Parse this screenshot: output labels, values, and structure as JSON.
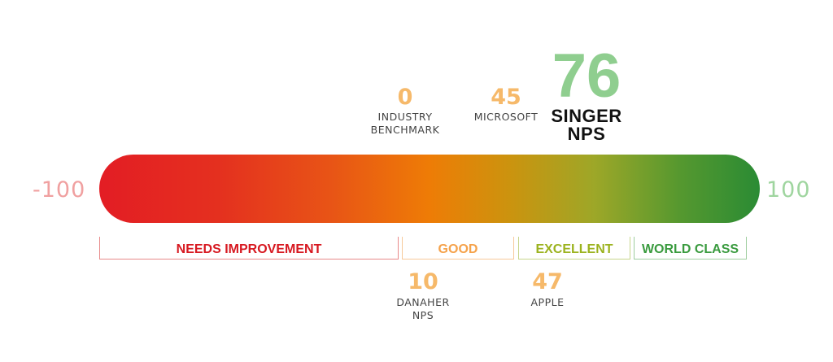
{
  "chart_data": {
    "type": "bar",
    "scale": {
      "min": -100,
      "max": 100,
      "min_label": "-100",
      "max_label": "100"
    },
    "bands": [
      {
        "label": "NEEDS IMPROVEMENT",
        "from": -100,
        "to": 0,
        "color": "#d71921"
      },
      {
        "label": "GOOD",
        "from": 0,
        "to": 30,
        "color": "#f5a24b"
      },
      {
        "label": "EXCELLENT",
        "from": 30,
        "to": 70,
        "color": "#9cb31f"
      },
      {
        "label": "WORLD CLASS",
        "from": 70,
        "to": 100,
        "color": "#3a9b3f"
      }
    ],
    "markers_above": [
      {
        "value": "0",
        "name_lines": [
          "INDUSTRY",
          "BENCHMARK"
        ]
      },
      {
        "value": "45",
        "name_lines": [
          "MICROSOFT"
        ]
      }
    ],
    "highlight": {
      "value": "76",
      "name_lines": [
        "SINGER",
        "NPS"
      ]
    },
    "markers_below": [
      {
        "value": "10",
        "name_lines": [
          "DANAHER",
          "NPS"
        ]
      },
      {
        "value": "47",
        "name_lines": [
          "APPLE"
        ]
      }
    ]
  },
  "colors": {
    "marker_value": "#f6b96a",
    "highlight_value": "#8fce8f",
    "min_label": "#f0a0a0",
    "max_label": "#9fd59f"
  }
}
